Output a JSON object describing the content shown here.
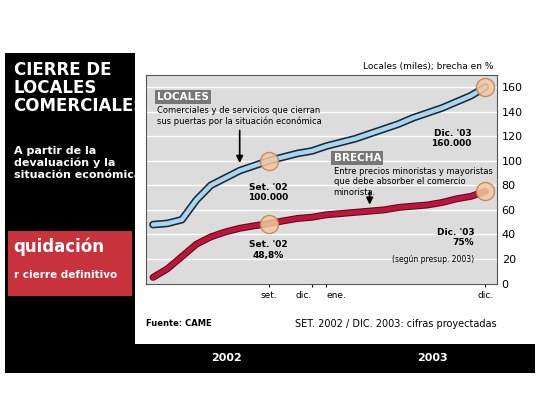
{
  "chart_data": {
    "type": "line",
    "title": "CIERRE DE LOCALES COMERCIALES",
    "subtitle": "A partir de la devaluación y la situación económica",
    "y_label": "Locales (miles); brecha en %",
    "x": [
      0,
      1,
      2,
      3,
      4,
      5,
      6,
      7,
      8,
      9,
      10,
      11,
      12,
      13,
      14,
      15,
      16,
      17,
      18,
      19,
      20,
      21,
      22,
      23
    ],
    "xlim": [
      -0.5,
      23.8
    ],
    "xticks": [
      {
        "value": 8,
        "label": "set."
      },
      {
        "value": 11,
        "label": "dic."
      },
      {
        "value": 12,
        "label": "ene."
      },
      {
        "value": 23,
        "label": "dic."
      }
    ],
    "ylim": [
      0,
      170
    ],
    "yticks": [
      0,
      20,
      40,
      60,
      80,
      100,
      120,
      140,
      160
    ],
    "grid": true,
    "series": [
      {
        "name": "LOCALES",
        "description": "Comerciales y de servicios que cierran sus puertas por la situación económica",
        "color": "#a9d6ee",
        "values": [
          48,
          49,
          52,
          68,
          80,
          86,
          92,
          96,
          100,
          103,
          106,
          108,
          112,
          115,
          118,
          122,
          126,
          130,
          135,
          139,
          143,
          148,
          153,
          160
        ]
      },
      {
        "name": "BRECHA",
        "description": "Entre precios minoristas y mayoristas que debe absorber el comercio minorista.",
        "color": "#c0143c",
        "values": [
          5,
          12,
          22,
          32,
          38,
          42,
          45,
          47,
          48.8,
          51,
          53,
          54,
          56,
          57,
          58,
          59,
          60,
          62,
          63,
          64,
          66,
          69,
          71,
          75
        ]
      }
    ],
    "annotations": [
      {
        "x": 8,
        "y": 100,
        "label": "Set. '02",
        "value_label": "100.000"
      },
      {
        "x": 23,
        "y": 160,
        "label": "Dic. '03",
        "value_label": "160.000"
      },
      {
        "x": 8,
        "y": 48.8,
        "label": "Set. '02",
        "value_label": "48,8%"
      },
      {
        "x": 23,
        "y": 75,
        "label": "Dic. '03",
        "value_label": "75%",
        "note": "(según presup. 2003)"
      }
    ],
    "note": "SET. 2002 / DIC. 2003: cifras proyectadas",
    "source": "Fuente: CAME",
    "year_labels": [
      "2002",
      "2003"
    ],
    "photo_text": [
      "quidación",
      "r cierre definitivo"
    ]
  }
}
